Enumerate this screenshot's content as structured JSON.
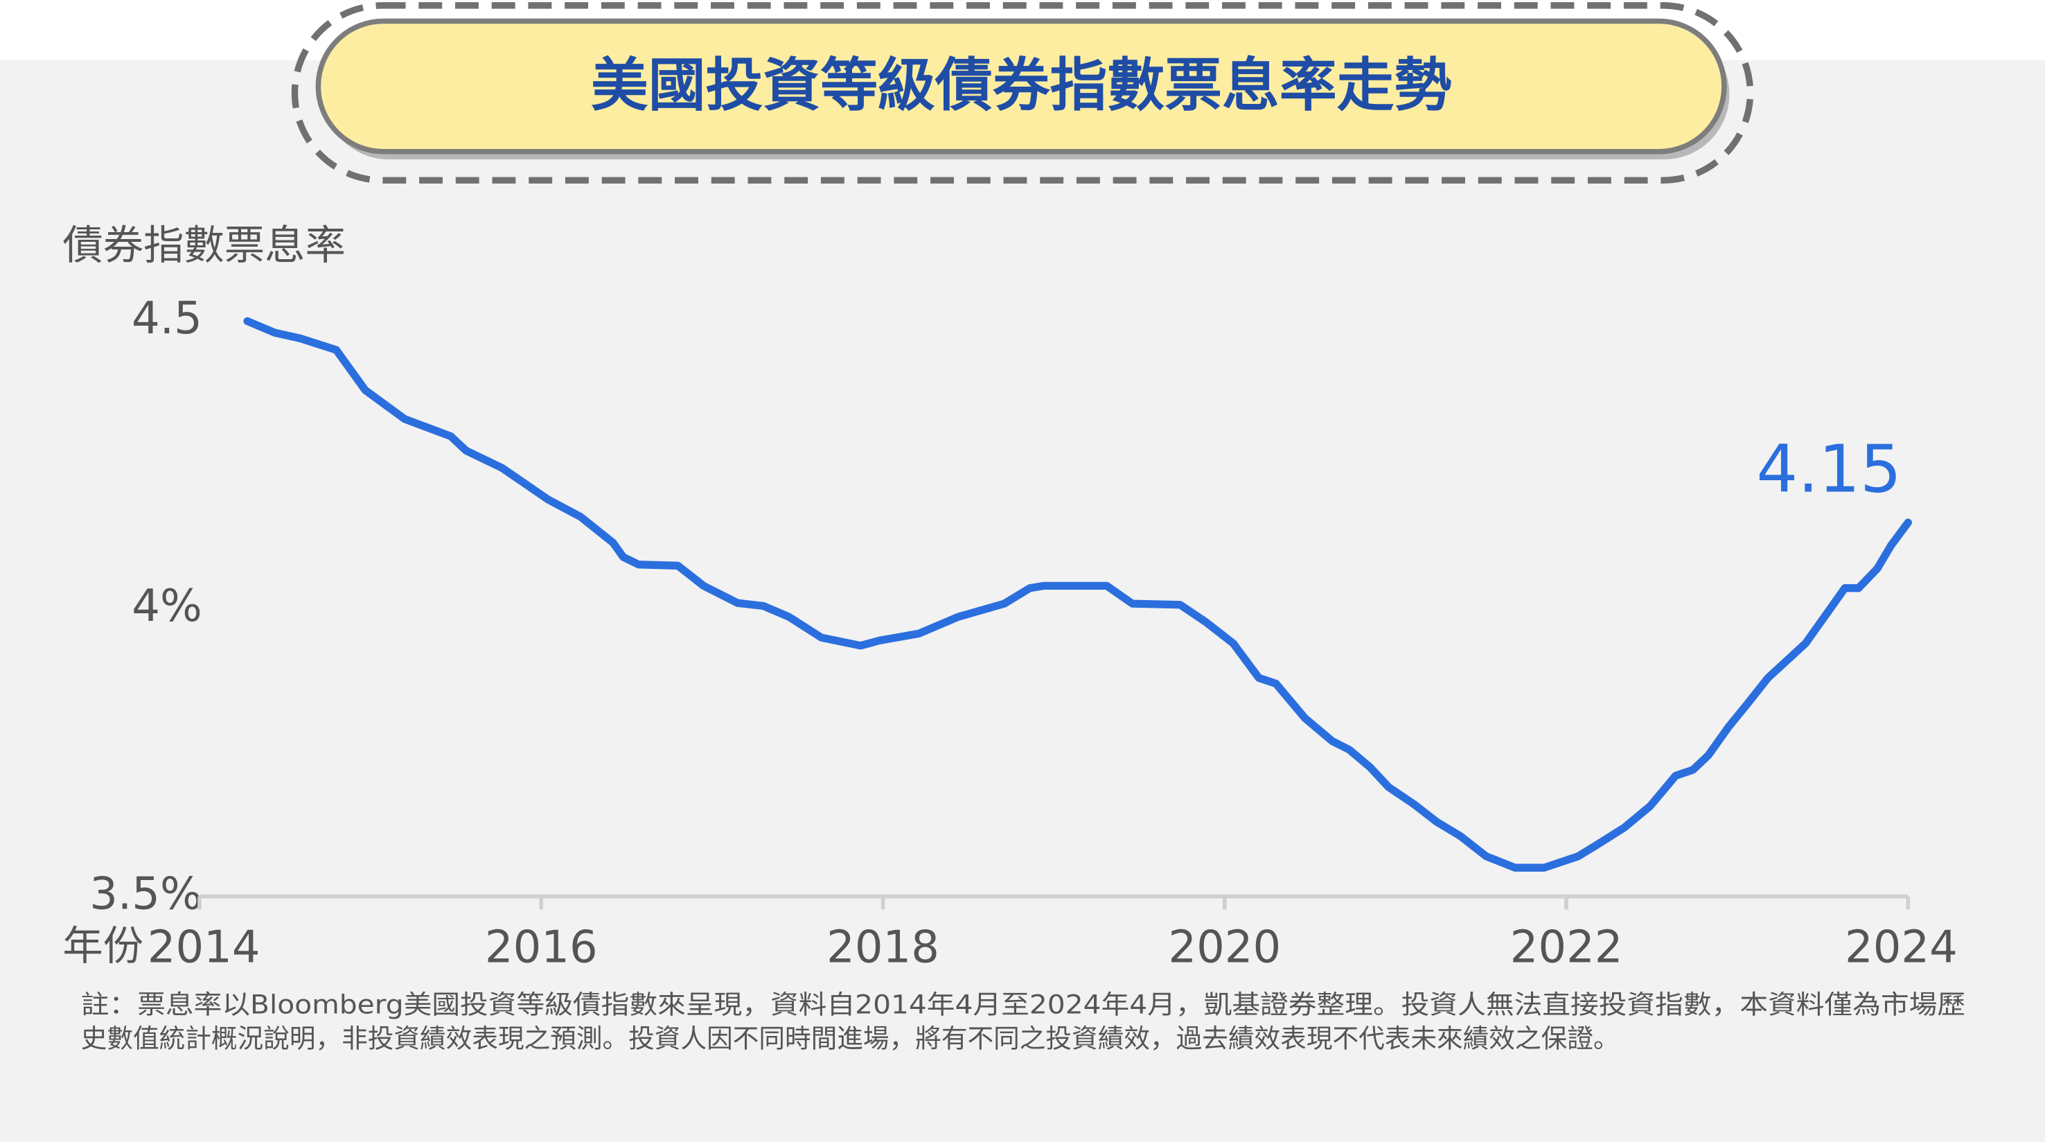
{
  "chart_data": {
    "type": "line",
    "title": "美國投資等級債券指數票息率走勢",
    "y_label": "債券指數票息率",
    "x_label": "年份",
    "annotation": "4.15",
    "note": [
      "註：票息率以Bloomberg美國投資等級債指數來呈現，資料自2014年4月至2024年4月，凱基證券整理。投資人無法直接投資指數，本資料僅為市場歷",
      "史數值統計概況說明，非投資績效表現之預測。投資人因不同時間進場，將有不同之投資績效，過去績效表現不代表未來績效之保證。"
    ],
    "x": [
      2014.28,
      2014.44,
      2014.59,
      2014.8,
      2014.97,
      2015.2,
      2015.47,
      2015.56,
      2015.77,
      2016.04,
      2016.23,
      2016.42,
      2016.48,
      2016.57,
      2016.8,
      2016.95,
      2017.15,
      2017.3,
      2017.45,
      2017.64,
      2017.87,
      2017.98,
      2018.21,
      2018.44,
      2018.71,
      2018.86,
      2018.94,
      2019.31,
      2019.46,
      2019.74,
      2019.89,
      2020.05,
      2020.2,
      2020.3,
      2020.47,
      2020.63,
      2020.73,
      2020.85,
      2020.96,
      2021.11,
      2021.24,
      2021.38,
      2021.53,
      2021.7,
      2021.87,
      2022.07,
      2022.18,
      2022.34,
      2022.49,
      2022.64,
      2022.74,
      2022.83,
      2022.95,
      2023.06,
      2023.18,
      2023.4,
      2023.52,
      2023.63,
      2023.71,
      2023.82,
      2023.9,
      2024.0
    ],
    "series": [
      {
        "name": "債券指數票息率",
        "color": "#2b6fde",
        "values": [
          4.5,
          4.48,
          4.47,
          4.45,
          4.38,
          4.33,
          4.3,
          4.275,
          4.245,
          4.19,
          4.16,
          4.115,
          4.09,
          4.077,
          4.075,
          4.04,
          4.01,
          4.005,
          3.986,
          3.95,
          3.936,
          3.945,
          3.957,
          3.986,
          4.009,
          4.036,
          4.04,
          4.04,
          4.009,
          4.007,
          3.977,
          3.94,
          3.88,
          3.87,
          3.81,
          3.77,
          3.755,
          3.725,
          3.69,
          3.66,
          3.63,
          3.605,
          3.57,
          3.55,
          3.55,
          3.57,
          3.59,
          3.62,
          3.657,
          3.71,
          3.72,
          3.745,
          3.795,
          3.835,
          3.88,
          3.94,
          3.99,
          4.036,
          4.036,
          4.07,
          4.11,
          4.15
        ]
      }
    ],
    "xlim": [
      2014,
      2024
    ],
    "xticks": [
      2014,
      2016,
      2018,
      2020,
      2022,
      2024
    ],
    "ylim": [
      3.5,
      4.5
    ],
    "yticks": [
      {
        "value": 3.5,
        "label": "3.5%"
      },
      {
        "value": 4,
        "label": "4%"
      },
      4.5
    ],
    "grid": false
  }
}
